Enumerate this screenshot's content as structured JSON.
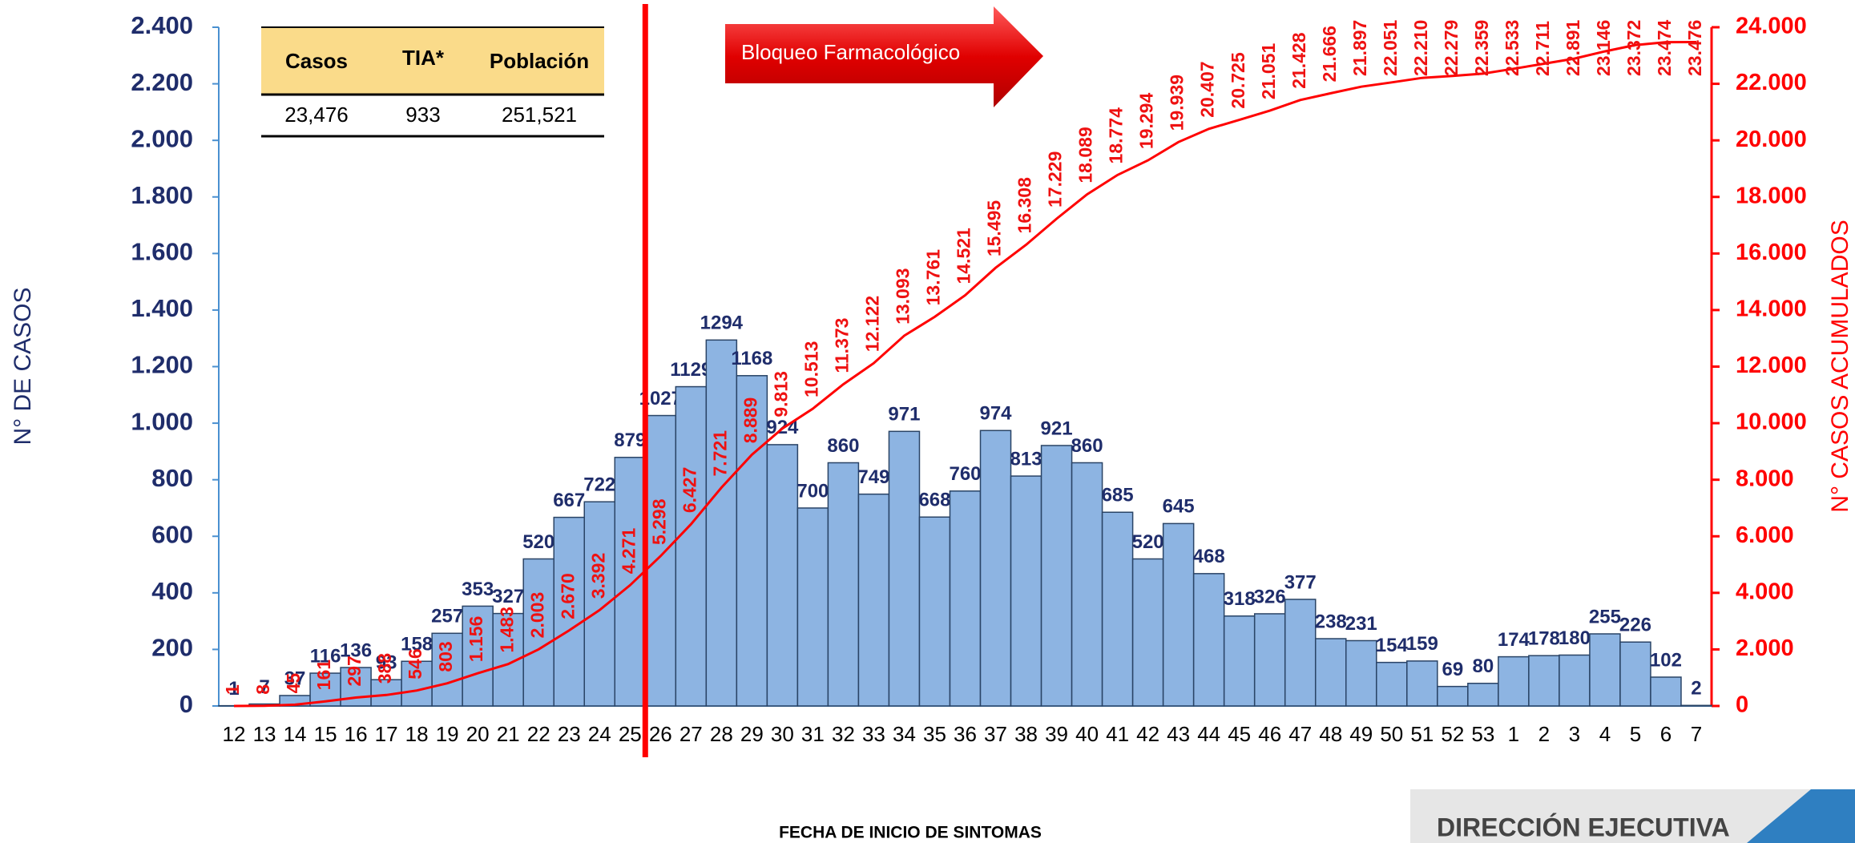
{
  "chart_data": {
    "type": "bar",
    "categories": [
      "12",
      "13",
      "14",
      "15",
      "16",
      "17",
      "18",
      "19",
      "20",
      "21",
      "22",
      "23",
      "24",
      "25",
      "26",
      "27",
      "28",
      "29",
      "30",
      "31",
      "32",
      "33",
      "34",
      "35",
      "36",
      "37",
      "38",
      "39",
      "40",
      "41",
      "42",
      "43",
      "44",
      "45",
      "46",
      "47",
      "48",
      "49",
      "50",
      "51",
      "52",
      "53",
      "1",
      "2",
      "3",
      "4",
      "5",
      "6",
      "7"
    ],
    "series": [
      {
        "type": "bar",
        "color": "#8db4e2",
        "values": [
          1,
          7,
          37,
          116,
          136,
          93,
          158,
          257,
          353,
          327,
          520,
          667,
          722,
          879,
          1027,
          1129,
          1294,
          1168,
          924,
          700,
          860,
          749,
          971,
          668,
          760,
          974,
          813,
          921,
          860,
          685,
          520,
          645,
          468,
          318,
          326,
          377,
          238,
          231,
          154,
          159,
          69,
          80,
          174,
          178,
          180,
          255,
          226,
          102,
          2
        ]
      },
      {
        "type": "line",
        "axis": "y2",
        "color": "#ff0000",
        "values": [
          1,
          8,
          45,
          161,
          297,
          388,
          546,
          803,
          1156,
          1483,
          2003,
          2670,
          3392,
          4271,
          5298,
          6427,
          7721,
          8889,
          9813,
          10513,
          11373,
          12122,
          13093,
          13761,
          14521,
          15495,
          16308,
          17229,
          18089,
          18774,
          19294,
          19939,
          20407,
          20725,
          21051,
          21428,
          21666,
          21897,
          22051,
          22210,
          22279,
          22359,
          22533,
          22711,
          22891,
          23146,
          23372,
          23474,
          23476
        ],
        "value_labels": [
          "1",
          "8",
          "45",
          "161",
          "297",
          "388",
          "546",
          "803",
          "1.156",
          "1.483",
          "2.003",
          "2.670",
          "3.392",
          "4.271",
          "5.298",
          "6.427",
          "7.721",
          "8.889",
          "9.813",
          "10.513",
          "11.373",
          "12.122",
          "13.093",
          "13.761",
          "14.521",
          "15.495",
          "16.308",
          "17.229",
          "18.089",
          "18.774",
          "19.294",
          "19.939",
          "20.407",
          "20.725",
          "21.051",
          "21.428",
          "21.666",
          "21.897",
          "22.051",
          "22.210",
          "22.279",
          "22.359",
          "22.533",
          "22.711",
          "22.891",
          "23.146",
          "23.372",
          "23.474",
          "23.476"
        ]
      }
    ],
    "ylim": [
      0,
      2400
    ],
    "yticks": [
      0,
      200,
      400,
      600,
      800,
      {
        "value": 1000,
        "label": "1.000"
      },
      {
        "value": 1200,
        "label": "1.200"
      },
      {
        "value": 1400,
        "label": "1.400"
      },
      {
        "value": 1600,
        "label": "1.600"
      },
      {
        "value": 1800,
        "label": "1.800"
      },
      {
        "value": 2000,
        "label": "2.000"
      },
      {
        "value": 2200,
        "label": "2.200"
      },
      {
        "value": 2400,
        "label": "2.400"
      }
    ],
    "y2lim": [
      0,
      24000
    ],
    "y2ticks": [
      0,
      {
        "value": 2000,
        "label": "2.000"
      },
      {
        "value": 4000,
        "label": "4.000"
      },
      {
        "value": 6000,
        "label": "6.000"
      },
      {
        "value": 8000,
        "label": "8.000"
      },
      {
        "value": 10000,
        "label": "10.000"
      },
      {
        "value": 12000,
        "label": "12.000"
      },
      {
        "value": 14000,
        "label": "14.000"
      },
      {
        "value": 16000,
        "label": "16.000"
      },
      {
        "value": 18000,
        "label": "18.000"
      },
      {
        "value": 20000,
        "label": "20.000"
      },
      {
        "value": 22000,
        "label": "22.000"
      },
      {
        "value": 24000,
        "label": "24.000"
      }
    ],
    "ylabel": "N° DE CASOS",
    "y2label": "N° CASOS ACUMULADOS",
    "xlabel": "FECHA DE INICIO DE SINTOMAS",
    "annotation": "Bloqueo Farmacológico"
  },
  "table": {
    "header": [
      "Casos",
      "TIA*",
      "Población"
    ],
    "rows": [
      [
        "23,476",
        "933",
        "251,521"
      ]
    ]
  },
  "logo": {
    "text": "DIRECCIÓN EJECUTIVA"
  }
}
